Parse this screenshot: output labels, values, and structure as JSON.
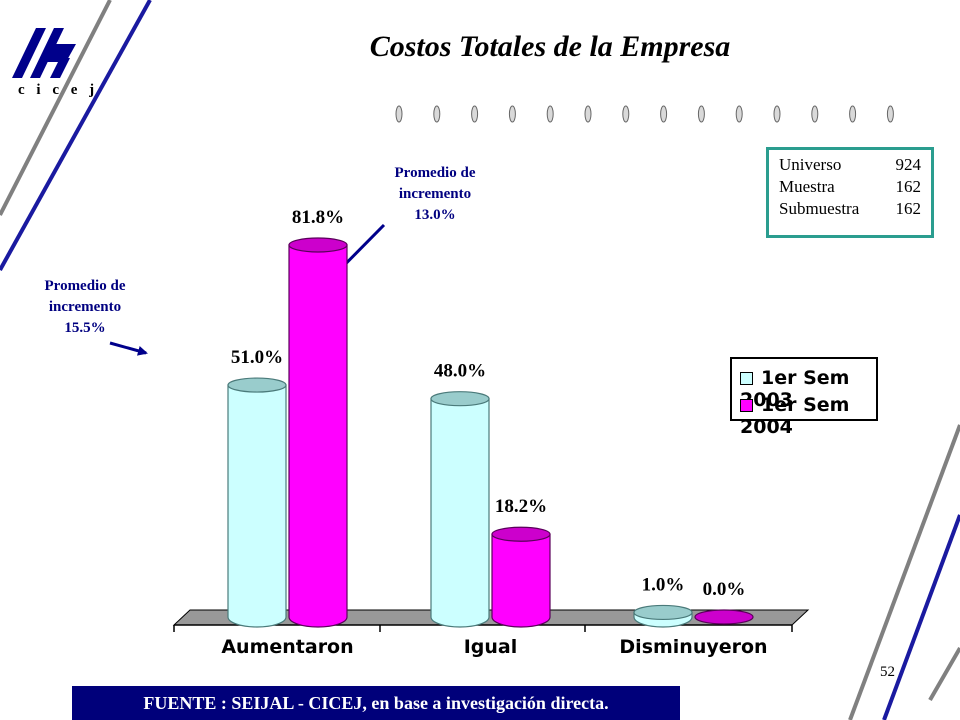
{
  "logo": {
    "text": "c i c e j"
  },
  "title": "Costos Totales de la Empresa",
  "info_box": [
    {
      "label": "Universo",
      "value": "924"
    },
    {
      "label": "Muestra",
      "value": "162"
    },
    {
      "label": "Submuestra",
      "value": "162"
    }
  ],
  "annotations": [
    {
      "lines": [
        "Promedio de",
        "incremento",
        "15.5%"
      ]
    },
    {
      "lines": [
        "Promedio de",
        "incremento",
        "13.0%"
      ]
    }
  ],
  "chart_data": {
    "type": "bar",
    "categories": [
      "Aumentaron",
      "Igual",
      "Disminuyeron"
    ],
    "series": [
      {
        "name": "1er Sem 2003",
        "values": [
          51.0,
          48.0,
          1.0
        ],
        "labels": [
          "51.0%",
          "48.0%",
          "1.0%"
        ],
        "color": "#ccffff"
      },
      {
        "name": "1er Sem 2004",
        "values": [
          81.8,
          18.2,
          0.0
        ],
        "labels": [
          "81.8%",
          "18.2%",
          "0.0%"
        ],
        "color": "#ff00ff"
      }
    ],
    "ylim": [
      0,
      100
    ],
    "grid": false,
    "legend": "right"
  },
  "source": "FUENTE :  SEIJAL - CICEJ,  en base a investigación directa.",
  "page_number": "52"
}
